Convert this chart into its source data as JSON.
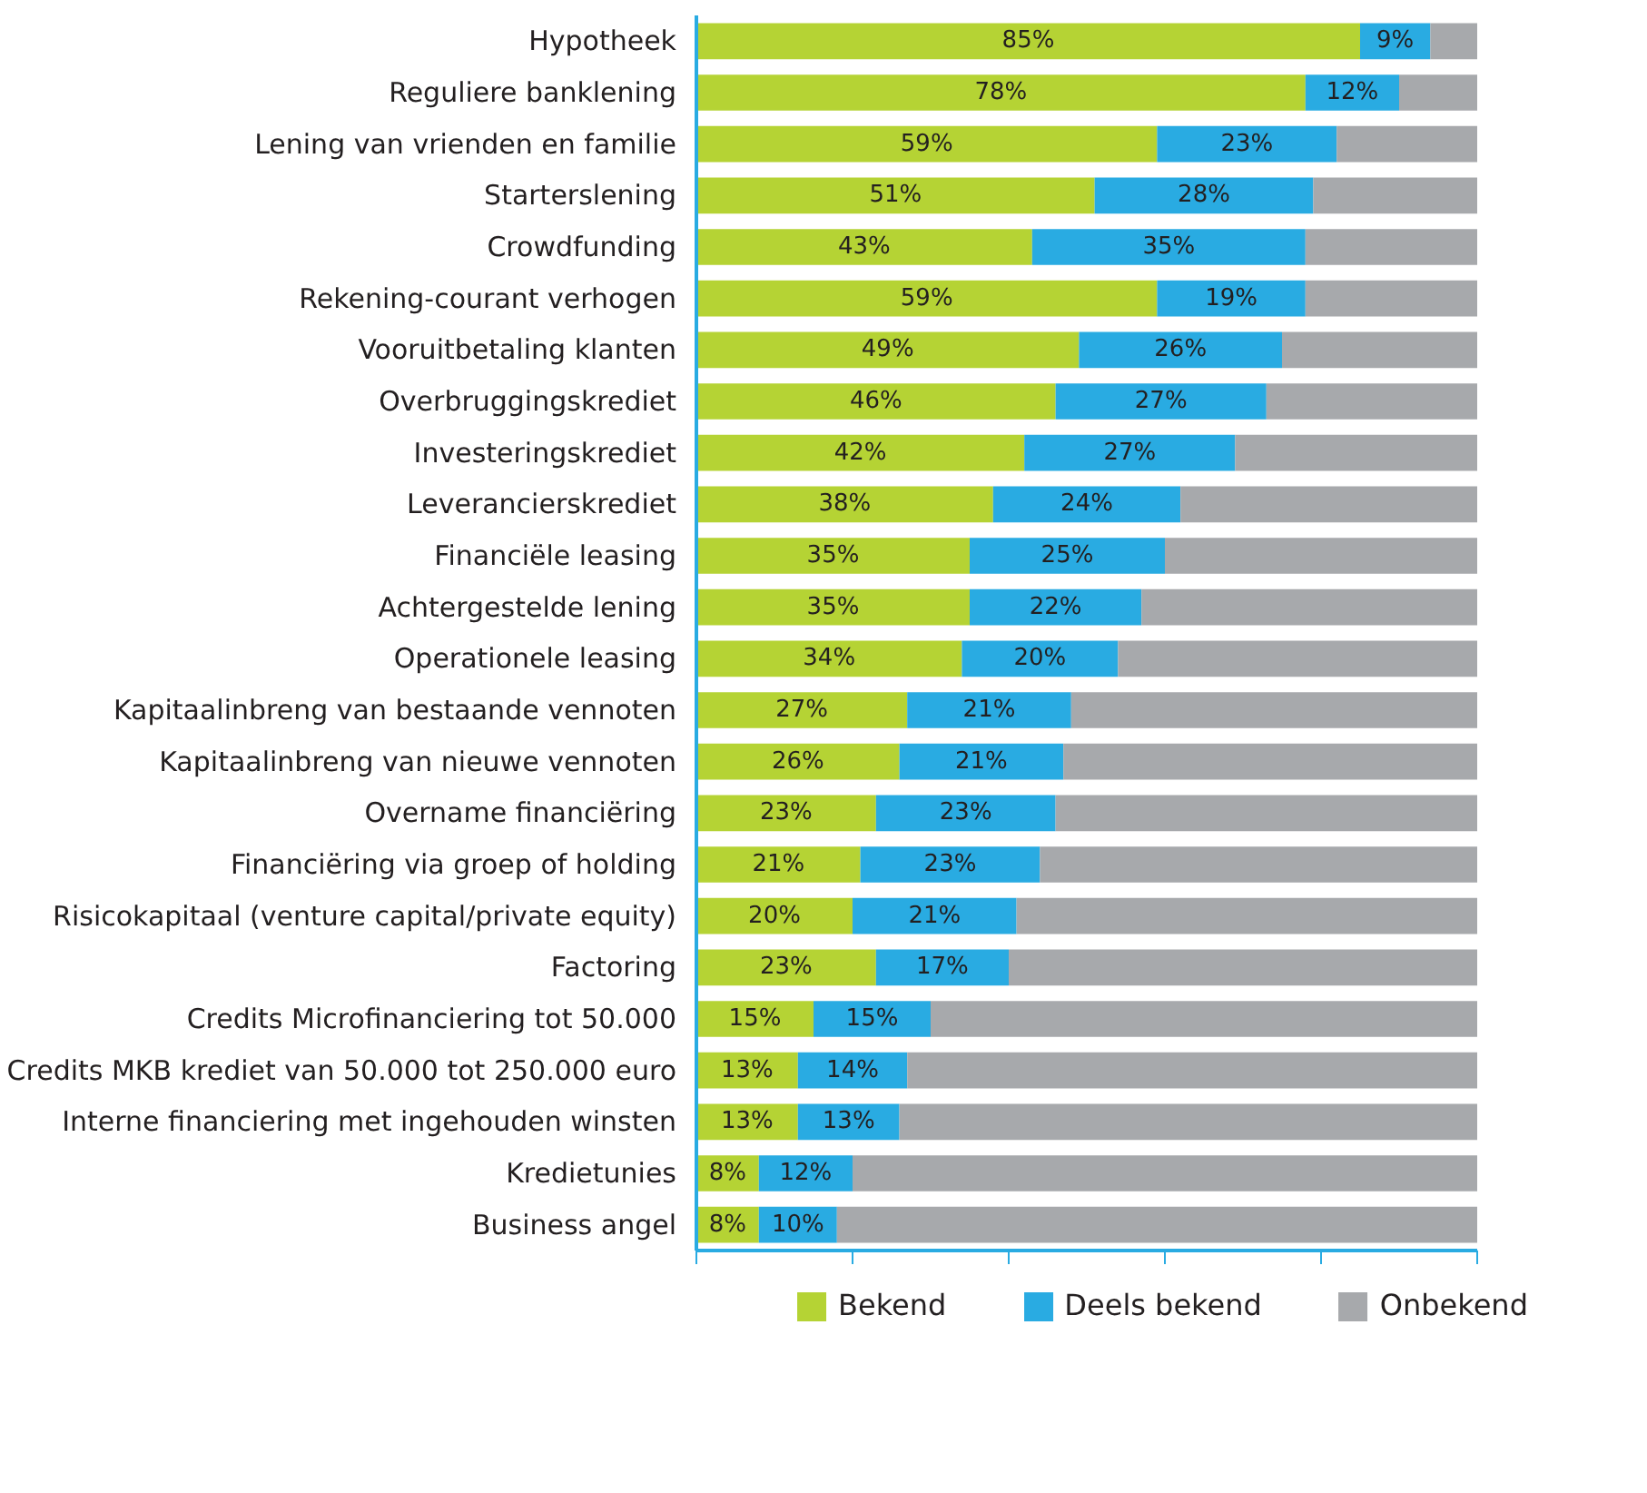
{
  "chart_data": {
    "type": "bar",
    "orientation": "horizontal",
    "stacked": true,
    "categories": [
      "Hypotheek",
      "Reguliere banklening",
      "Lening van vrienden en familie",
      "Starterslening",
      "Crowdfunding",
      "Rekening-courant verhogen",
      "Vooruitbetaling klanten",
      "Overbruggingskrediet",
      "Investeringskrediet",
      "Leverancierskrediet",
      "Financiële leasing",
      "Achtergestelde lening",
      "Operationele leasing",
      "Kapitaalinbreng van bestaande vennoten",
      "Kapitaalinbreng van nieuwe vennoten",
      "Overname financiëring",
      "Financiëring via groep of holding",
      "Risicokapitaal (venture capital/private equity)",
      "Factoring",
      "Credits Microfinanciering tot 50.000",
      "Credits MKB krediet van 50.000 tot 250.000 euro",
      "Interne financiering met ingehouden winsten",
      "Kredietunies",
      "Business angel"
    ],
    "series": [
      {
        "name": "Bekend",
        "color": "#b5d334",
        "values": [
          85,
          78,
          59,
          51,
          43,
          59,
          49,
          46,
          42,
          38,
          35,
          35,
          34,
          27,
          26,
          23,
          21,
          20,
          23,
          15,
          13,
          13,
          8,
          8
        ],
        "value_labels": [
          "85%",
          "78%",
          "59%",
          "51%",
          "43%",
          "59%",
          "49%",
          "46%",
          "42%",
          "38%",
          "35%",
          "35%",
          "34%",
          "27%",
          "26%",
          "23%",
          "21%",
          "20%",
          "23%",
          "15%",
          "13%",
          "13%",
          "8%",
          "8%"
        ]
      },
      {
        "name": "Deels bekend",
        "color": "#29abe2",
        "values": [
          9,
          12,
          23,
          28,
          35,
          19,
          26,
          27,
          27,
          24,
          25,
          22,
          20,
          21,
          21,
          23,
          23,
          21,
          17,
          15,
          14,
          13,
          12,
          10
        ],
        "value_labels": [
          "9%",
          "12%",
          "23%",
          "28%",
          "35%",
          "19%",
          "26%",
          "27%",
          "27%",
          "24%",
          "25%",
          "22%",
          "20%",
          "21%",
          "21%",
          "23%",
          "23%",
          "21%",
          "17%",
          "15%",
          "14%",
          "13%",
          "12%",
          "10%"
        ]
      },
      {
        "name": "Onbekend",
        "color": "#a7a9ac",
        "values": [
          6,
          10,
          18,
          21,
          22,
          22,
          25,
          27,
          31,
          38,
          40,
          43,
          46,
          52,
          53,
          54,
          56,
          59,
          60,
          70,
          73,
          74,
          80,
          82
        ]
      }
    ],
    "xlim": [
      0,
      100
    ],
    "xticks": [
      {
        "value": 0,
        "label": null
      },
      {
        "value": 20,
        "label": null
      },
      {
        "value": 40,
        "label": null
      },
      {
        "value": 60,
        "label": null
      },
      {
        "value": 80,
        "label": null
      },
      {
        "value": 100,
        "label": null
      }
    ],
    "tick_labels": "y",
    "grid": false,
    "legend": "bottom"
  }
}
